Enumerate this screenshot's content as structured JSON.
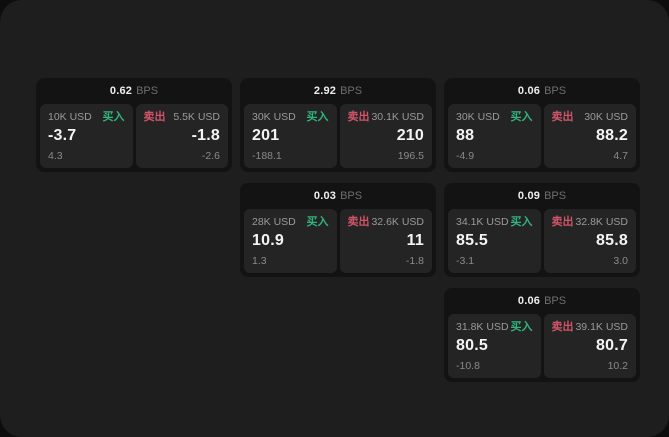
{
  "labels": {
    "buy": "买入",
    "sell": "卖出",
    "bps_unit": "BPS"
  },
  "colors": {
    "buy_accent": "#31b57e",
    "sell_accent": "#cf5467",
    "window_bg": "#1e1e1e",
    "card_bg": "#131313",
    "panel_bg": "#242424"
  },
  "cards": [
    {
      "bps": "0.62",
      "col": 1,
      "row": 1,
      "buy": {
        "size": "10K USD",
        "value": "-3.7",
        "sub": "4.3"
      },
      "sell": {
        "size": "5.5K USD",
        "value": "-1.8",
        "sub": "-2.6"
      }
    },
    {
      "bps": "2.92",
      "col": 2,
      "row": 1,
      "buy": {
        "size": "30K USD",
        "value": "201",
        "sub": "-188.1"
      },
      "sell": {
        "size": "30.1K USD",
        "value": "210",
        "sub": "196.5"
      }
    },
    {
      "bps": "0.06",
      "col": 3,
      "row": 1,
      "buy": {
        "size": "30K USD",
        "value": "88",
        "sub": "-4.9"
      },
      "sell": {
        "size": "30K USD",
        "value": "88.2",
        "sub": "4.7"
      }
    },
    {
      "bps": "0.03",
      "col": 2,
      "row": 2,
      "buy": {
        "size": "28K USD",
        "value": "10.9",
        "sub": "1.3"
      },
      "sell": {
        "size": "32.6K USD",
        "value": "11",
        "sub": "-1.8"
      }
    },
    {
      "bps": "0.09",
      "col": 3,
      "row": 2,
      "buy": {
        "size": "34.1K USD",
        "value": "85.5",
        "sub": "-3.1"
      },
      "sell": {
        "size": "32.8K USD",
        "value": "85.8",
        "sub": "3.0"
      }
    },
    {
      "bps": "0.06",
      "col": 3,
      "row": 3,
      "buy": {
        "size": "31.8K USD",
        "value": "80.5",
        "sub": "-10.8"
      },
      "sell": {
        "size": "39.1K USD",
        "value": "80.7",
        "sub": "10.2"
      }
    }
  ]
}
